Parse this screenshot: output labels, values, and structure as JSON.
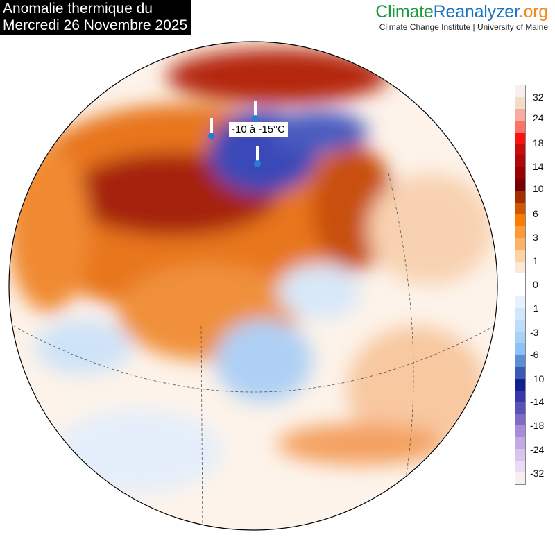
{
  "title": {
    "line1": "Anomalie thermique du",
    "line2": "Mercredi 26 Novembre 2025"
  },
  "logo": {
    "part1": "Climate",
    "part2": "Reanalyzer",
    "part3": ".org",
    "subtitle": "Climate Change Institute | University of Maine"
  },
  "annotation": {
    "label": "-10 à -15°C",
    "icon": "thermometer-pin-icon"
  },
  "legend": {
    "ticks": [
      "32",
      "24",
      "18",
      "14",
      "10",
      "6",
      "3",
      "1",
      "0",
      "-1",
      "-3",
      "-6",
      "-10",
      "-14",
      "-18",
      "-24",
      "-32"
    ],
    "colors": [
      "#f8f0ec",
      "#f3dcc8",
      "#fcaaa0",
      "#fa7268",
      "#ff1010",
      "#c80c0c",
      "#b00808",
      "#9a0000",
      "#780000",
      "#a42e00",
      "#d25500",
      "#fa7d00",
      "#fc9a36",
      "#fdb266",
      "#fed3a2",
      "#fde8d8",
      "#ffffff",
      "#ffffff",
      "#e8f2fe",
      "#d0e6fc",
      "#bcdcfa",
      "#a6d2f8",
      "#88c2f6",
      "#5c8ed8",
      "#3a5ab4",
      "#122090",
      "#3838a8",
      "#5a52b8",
      "#7e6cc8",
      "#a88cdc",
      "#c4a8e4",
      "#d8c4ec",
      "#e8dcf2",
      "#f8f0f0"
    ]
  },
  "map": {
    "projection": "orthographic",
    "region": "Asia",
    "anomaly_colors": {
      "warm": "#e0701a",
      "hot": "#9a1c0c",
      "cold": "#3a48b8",
      "cool": "#cfe3f8"
    }
  }
}
